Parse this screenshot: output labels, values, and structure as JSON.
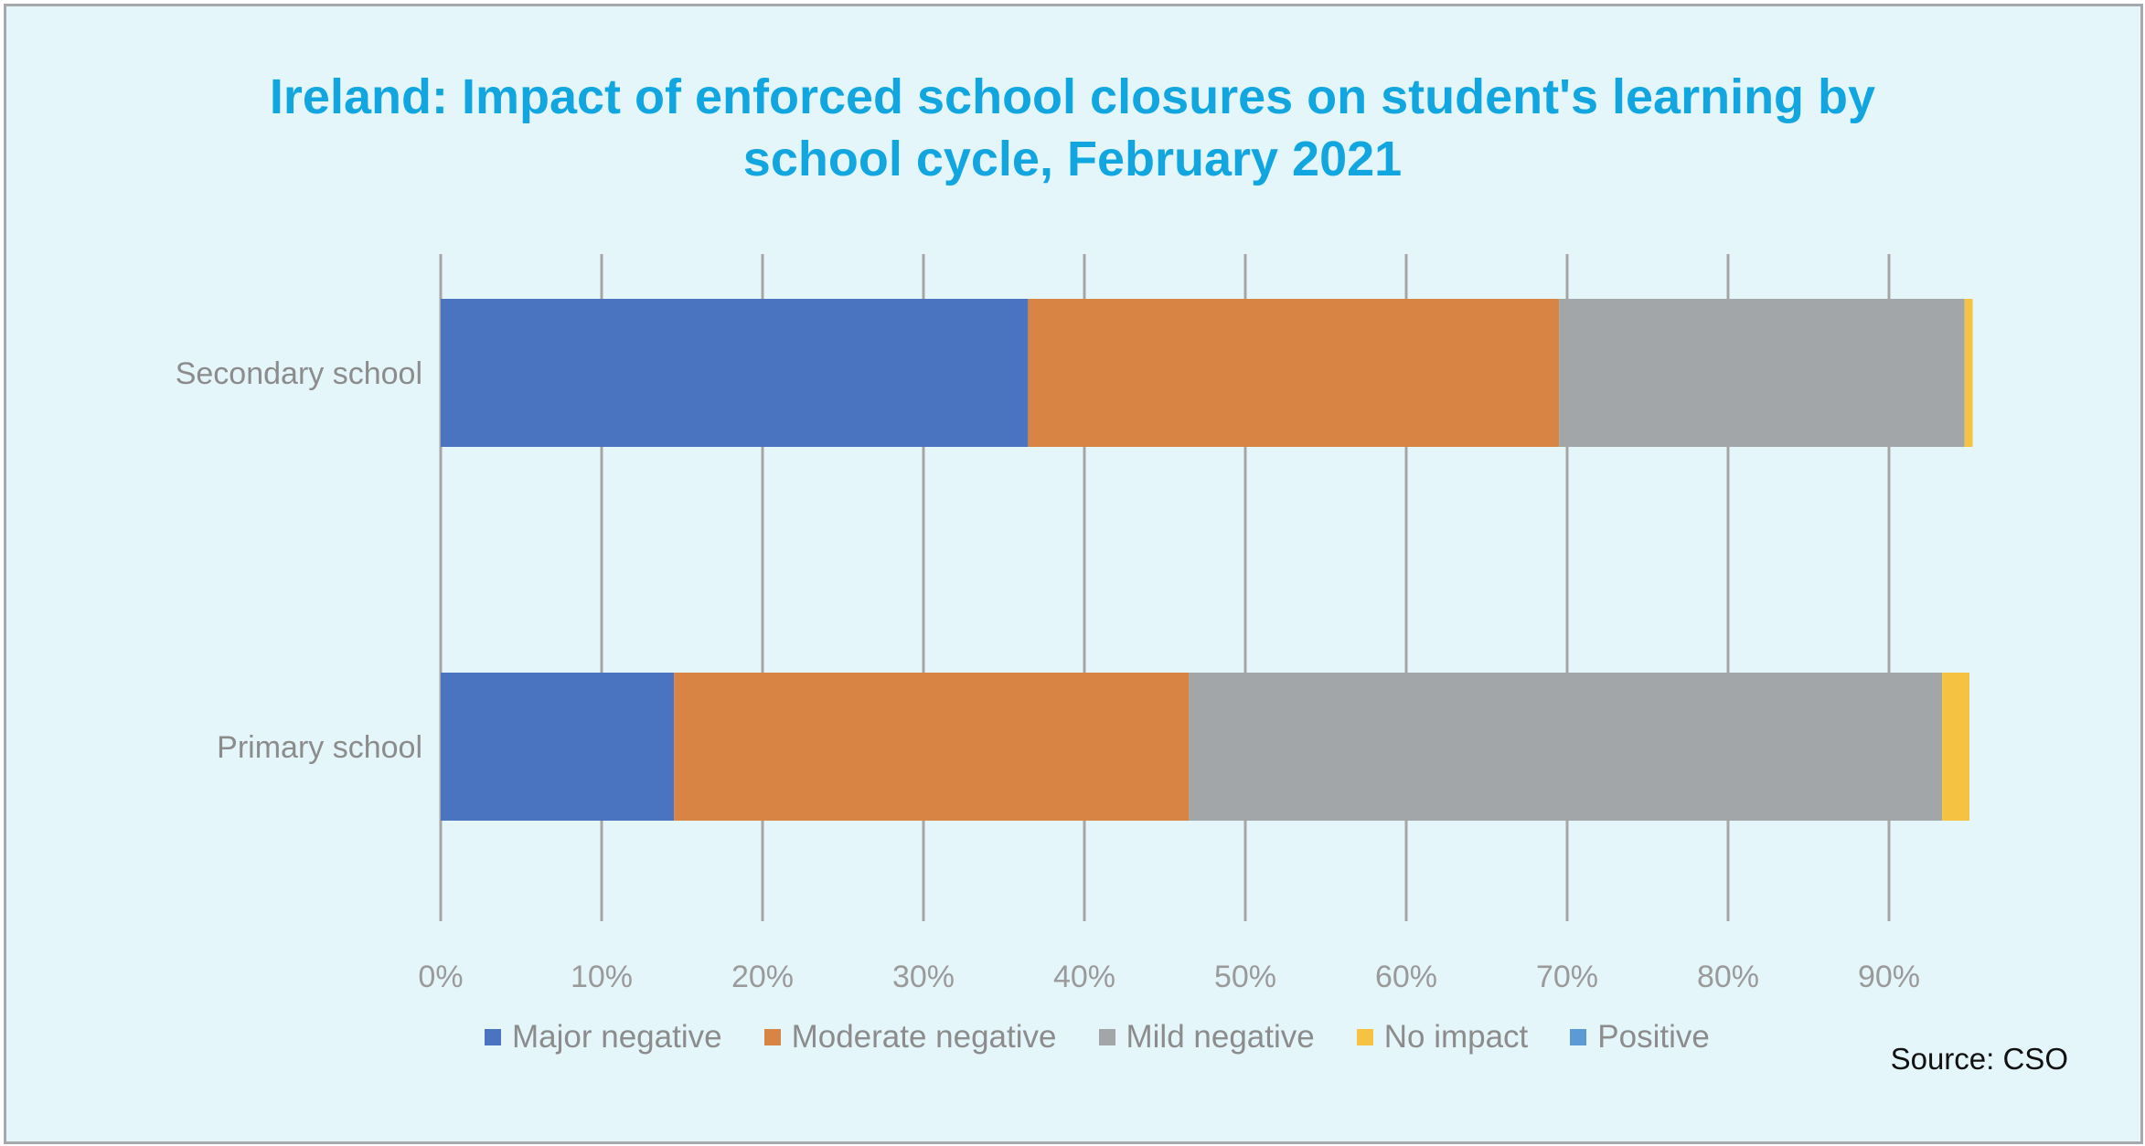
{
  "chart_data": {
    "type": "bar",
    "orientation": "horizontal",
    "stacked": true,
    "title_lines": [
      "Ireland: Impact of enforced school closures on student's learning by",
      "school cycle, February 2021"
    ],
    "categories": [
      "Secondary school",
      "Primary school"
    ],
    "series": [
      {
        "name": "Major negative",
        "color": "#4a74c0",
        "values": [
          36.5,
          14.5
        ]
      },
      {
        "name": "Moderate negative",
        "color": "#d88444",
        "values": [
          33.0,
          32.0
        ]
      },
      {
        "name": "Mild negative",
        "color": "#a3a6a8",
        "values": [
          25.2,
          46.8
        ]
      },
      {
        "name": "No impact",
        "color": "#f5c242",
        "values": [
          0.5,
          1.7
        ]
      },
      {
        "name": "Positive",
        "color": "#5b9bd5",
        "values": [
          0,
          0
        ]
      }
    ],
    "xlim": [
      0,
      95
    ],
    "x_ticks": [
      "0%",
      "10%",
      "20%",
      "30%",
      "40%",
      "50%",
      "60%",
      "70%",
      "80%",
      "90%"
    ],
    "x_tick_values": [
      0,
      10,
      20,
      30,
      40,
      50,
      60,
      70,
      80,
      90
    ],
    "grid": true,
    "legend_position": "bottom",
    "source": "Source: CSO"
  }
}
